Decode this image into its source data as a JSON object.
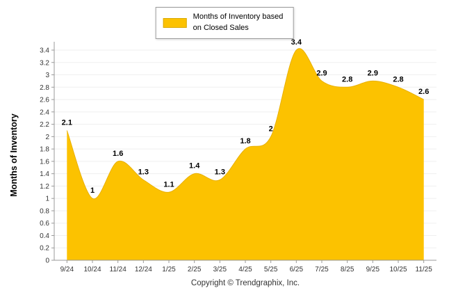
{
  "legend": {
    "line1": "Months of Inventory based",
    "line2": "on Closed Sales"
  },
  "ylabel": "Months of Inventory",
  "footer": "Copyright © Trendgraphix, Inc.",
  "chart_data": {
    "type": "area",
    "title": "",
    "xlabel": "",
    "ylabel": "Months of Inventory",
    "categories": [
      "9/24",
      "10/24",
      "11/24",
      "12/24",
      "1/25",
      "2/25",
      "3/25",
      "4/25",
      "5/25",
      "6/25",
      "7/25",
      "8/25",
      "9/25",
      "10/25",
      "11/25"
    ],
    "values": [
      2.1,
      1,
      1.6,
      1.3,
      1.1,
      1.4,
      1.3,
      1.8,
      2,
      3.4,
      2.9,
      2.8,
      2.9,
      2.8,
      2.6
    ],
    "labels": [
      "2.1",
      "1",
      "1.6",
      "1.3",
      "1.1",
      "1.4",
      "1.3",
      "1.8",
      "2",
      "3.4",
      "2.9",
      "2.8",
      "2.9",
      "2.8",
      "2.6"
    ],
    "ylim": [
      0,
      3.4
    ],
    "yticks": [
      "0",
      "0.2",
      "0.4",
      "0.6",
      "0.8",
      "1",
      "1.2",
      "1.4",
      "1.6",
      "1.8",
      "2",
      "2.2",
      "2.4",
      "2.6",
      "2.8",
      "3",
      "3.2",
      "3.4"
    ],
    "legend_label": "Months of Inventory based on Closed Sales",
    "legend_position": "top",
    "grid": true,
    "fill_color": "#FCC200",
    "stroke_color": "#E9B000",
    "axis_color": "#999999",
    "text_color": "#333333"
  }
}
